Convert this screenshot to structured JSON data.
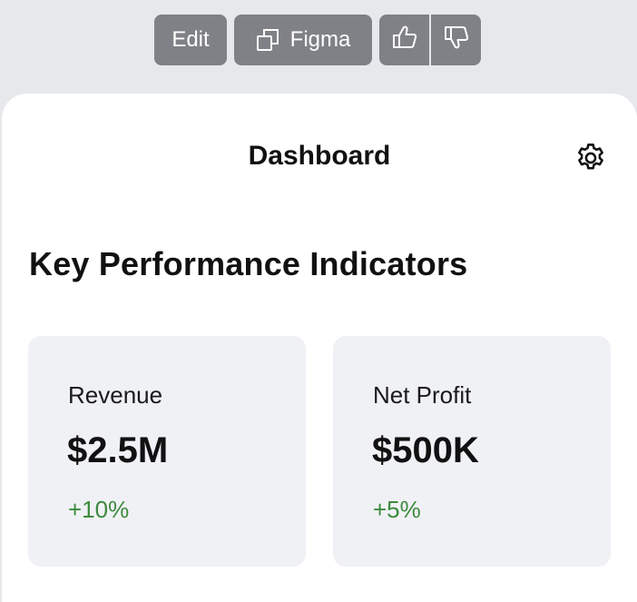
{
  "toolbar": {
    "edit_label": "Edit",
    "figma_label": "Figma",
    "figma_icon": "copy-icon",
    "like_icon": "thumbs-up-icon",
    "dislike_icon": "thumbs-down-icon"
  },
  "header": {
    "title": "Dashboard",
    "settings_icon": "gear-icon"
  },
  "section": {
    "title": "Key Performance Indicators"
  },
  "kpis": [
    {
      "label": "Revenue",
      "value": "$2.5M",
      "change": "+10%"
    },
    {
      "label": "Net Profit",
      "value": "$500K",
      "change": "+5%"
    }
  ],
  "colors": {
    "page_background": "#e6e8eb",
    "toolbar_button": "#7f8186",
    "card_background": "#ffffff",
    "kpi_background": "#f0f1f5",
    "positive_change": "#3c8a3c"
  }
}
